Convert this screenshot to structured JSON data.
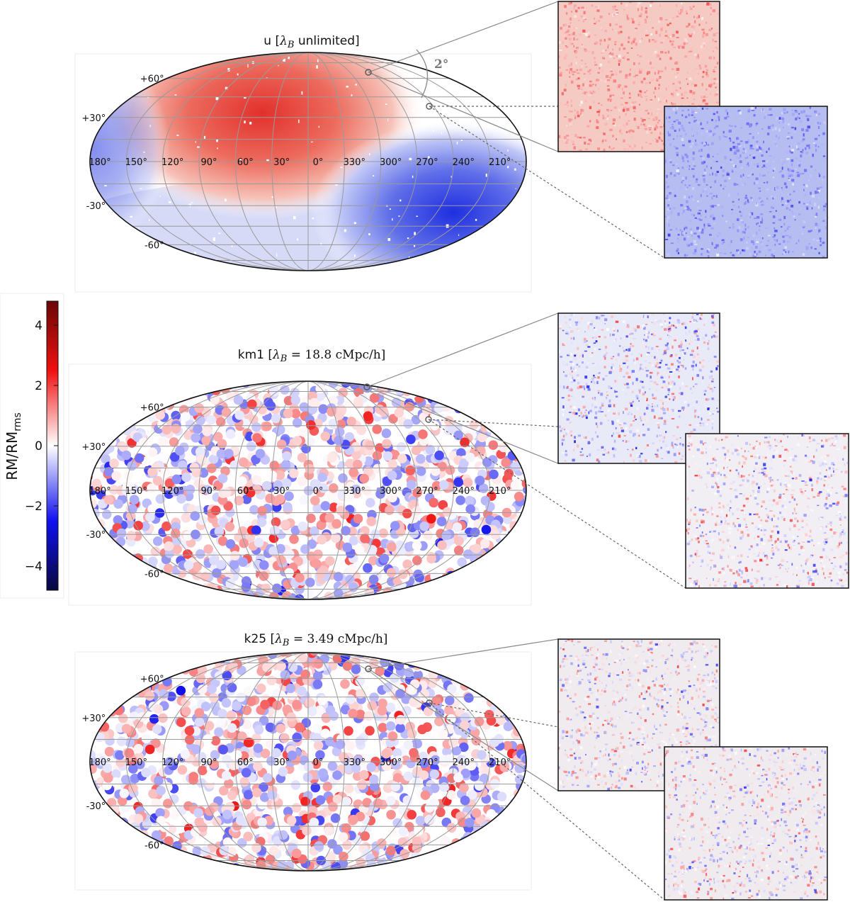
{
  "colormap": {
    "name": "seismic",
    "stops": [
      {
        "v": -4.8,
        "color": "#08083f"
      },
      {
        "v": -2.5,
        "color": "#1010f0"
      },
      {
        "v": 0.0,
        "color": "#ffffff"
      },
      {
        "v": 2.5,
        "color": "#f01010"
      },
      {
        "v": 4.8,
        "color": "#6a0606"
      }
    ]
  },
  "colorbar": {
    "label_main": "RM/RM",
    "label_sub": "rms",
    "ticks": [
      {
        "value": 4,
        "label": "4"
      },
      {
        "value": 2,
        "label": "2"
      },
      {
        "value": 0,
        "label": "0"
      },
      {
        "value": -2,
        "label": "−2"
      },
      {
        "value": -4,
        "label": "−4"
      }
    ],
    "range": [
      -4.8,
      4.8
    ]
  },
  "chart_data": [
    {
      "type": "heatmap",
      "projection": "mollweide",
      "title": {
        "prefix": "u  [",
        "lambda": "λ",
        "lambda_sub": "B",
        "suffix": " unlimited]"
      },
      "lon_labels": [
        "180°",
        "150°",
        "120°",
        "90°",
        "60°",
        "30°",
        "0°",
        "330°",
        "300°",
        "270°",
        "240°",
        "210°"
      ],
      "lat_labels": [
        "+60°",
        "+30°",
        "-30°",
        "-60°"
      ],
      "field": "smooth dipole: positive RM near galactic longitude 60°, latitude +30°; negative RM near longitude 240°, latitude -30°",
      "zoom_angle_label": "2°",
      "zoom_panels": [
        "predominantly positive RM (red)",
        "predominantly negative RM (blue)"
      ]
    },
    {
      "type": "scatter",
      "projection": "mollweide",
      "title": {
        "prefix": "km1  [",
        "lambda": "λ",
        "lambda_sub": "B",
        "suffix": " = 18.8  cMpc/h]"
      },
      "lon_labels": [
        "180°",
        "150°",
        "120°",
        "90°",
        "60°",
        "30°",
        "0°",
        "330°",
        "300°",
        "270°",
        "240°",
        "210°"
      ],
      "lat_labels": [
        "+60°",
        "+30°",
        "-30°",
        "-60°"
      ],
      "field": "uncorrelated patches, RM/RMrms roughly within ±4",
      "zoom_panels": [
        "mixed RM, mostly negative filaments",
        "mixed RM, positive and negative filaments"
      ]
    },
    {
      "type": "scatter",
      "projection": "mollweide",
      "title": {
        "prefix": "k25  [",
        "lambda": "λ",
        "lambda_sub": "B",
        "suffix": " = 3.49  cMpc/h]"
      },
      "lon_labels": [
        "180°",
        "150°",
        "120°",
        "90°",
        "60°",
        "30°",
        "0°",
        "330°",
        "300°",
        "270°",
        "240°",
        "210°"
      ],
      "lat_labels": [
        "+60°",
        "+30°",
        "-30°",
        "-60°"
      ],
      "field": "uncorrelated patches, RM/RMrms roughly within ±4",
      "zoom_panels": [
        "fine-scale mixed RM noise",
        "fine-scale mixed RM noise"
      ]
    }
  ]
}
